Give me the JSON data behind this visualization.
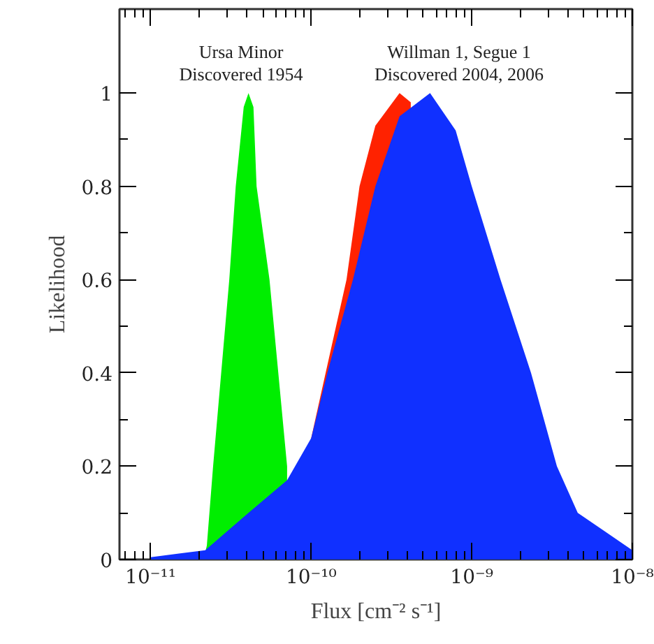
{
  "chart_data": {
    "type": "area",
    "xlabel": "Flux [cm⁻² s⁻¹]",
    "ylabel": "Likelihood",
    "log": "x",
    "grid": false,
    "xlim": [
      6.4e-12,
      1e-08
    ],
    "ylim": [
      0,
      1.18
    ],
    "xticks": [
      {
        "value": 1e-11,
        "label": "10⁻¹¹"
      },
      {
        "value": 1e-10,
        "label": "10⁻¹⁰"
      },
      {
        "value": 1e-09,
        "label": "10⁻⁹"
      },
      {
        "value": 1e-08,
        "label": "10⁻⁸"
      }
    ],
    "yticks": [
      0,
      0.2,
      0.4,
      0.6,
      0.8,
      1
    ],
    "annotations": [
      "Ursa Minor\nDiscovered 1954",
      "Willman 1, Segue 1\nDiscovered 2004, 2006"
    ],
    "series": [
      {
        "color": "#00ee00",
        "x": [
          2.14e-11,
          2.24e-11,
          2.45e-11,
          3.09e-11,
          3.39e-11,
          3.8e-11,
          4.07e-11,
          4.37e-11,
          4.57e-11,
          5.5e-11,
          7.08e-11
        ],
        "values": [
          0,
          0.03,
          0.2,
          0.6,
          0.8,
          0.97,
          1.0,
          0.97,
          0.8,
          0.6,
          0.2
        ]
      },
      {
        "color": "#ff2200",
        "x": [
          1e-10,
          1.23e-10,
          1.66e-10,
          2e-10,
          2.51e-10,
          3.55e-10,
          4.17e-10
        ],
        "values": [
          0.26,
          0.4,
          0.6,
          0.8,
          0.93,
          1.0,
          0.98
        ]
      },
      {
        "color": "#1030ff",
        "x": [
          1e-11,
          2.19e-11,
          4.07e-11,
          7.08e-11,
          1e-10,
          1.26e-10,
          1.82e-10,
          2.51e-10,
          3.55e-10,
          5.5e-10,
          7.94e-10,
          1e-09,
          1.51e-09,
          2.34e-09,
          3.39e-09,
          4.57e-09,
          1e-08
        ],
        "values": [
          0.005,
          0.02,
          0.1,
          0.17,
          0.26,
          0.4,
          0.6,
          0.8,
          0.95,
          1.0,
          0.92,
          0.8,
          0.6,
          0.4,
          0.2,
          0.1,
          0.02
        ]
      }
    ]
  }
}
